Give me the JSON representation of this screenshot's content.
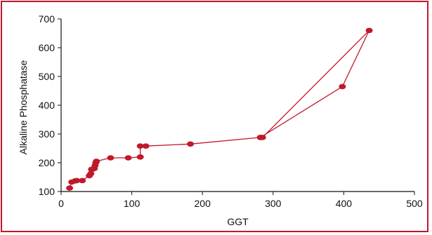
{
  "chart_data": {
    "type": "line",
    "title": "",
    "xlabel": "GGT",
    "ylabel": "Alkaline Phosphatase",
    "xlim": [
      0,
      500
    ],
    "ylim": [
      100,
      700
    ],
    "xticks": [
      0,
      100,
      200,
      300,
      400,
      500
    ],
    "yticks": [
      100,
      200,
      300,
      400,
      500,
      600,
      700
    ],
    "grid": false,
    "legend": "none",
    "colors": {
      "series": "#c0182b",
      "frame": "#c0182b",
      "axis": "#111111"
    },
    "series": [
      {
        "points": [
          [
            12,
            112
          ],
          [
            15,
            133
          ],
          [
            20,
            137
          ],
          [
            22,
            138
          ],
          [
            30,
            138
          ],
          [
            40,
            155
          ],
          [
            42,
            162
          ],
          [
            43,
            177
          ],
          [
            45,
            178
          ],
          [
            47,
            180
          ],
          [
            48,
            190
          ],
          [
            49,
            200
          ],
          [
            50,
            205
          ],
          [
            70,
            217
          ],
          [
            95,
            217
          ],
          [
            112,
            220
          ],
          [
            112,
            258
          ],
          [
            120,
            258
          ],
          [
            183,
            265
          ],
          [
            282,
            288
          ],
          [
            285,
            288
          ],
          [
            436,
            660
          ],
          [
            398,
            465
          ],
          [
            282,
            288
          ]
        ]
      }
    ]
  }
}
